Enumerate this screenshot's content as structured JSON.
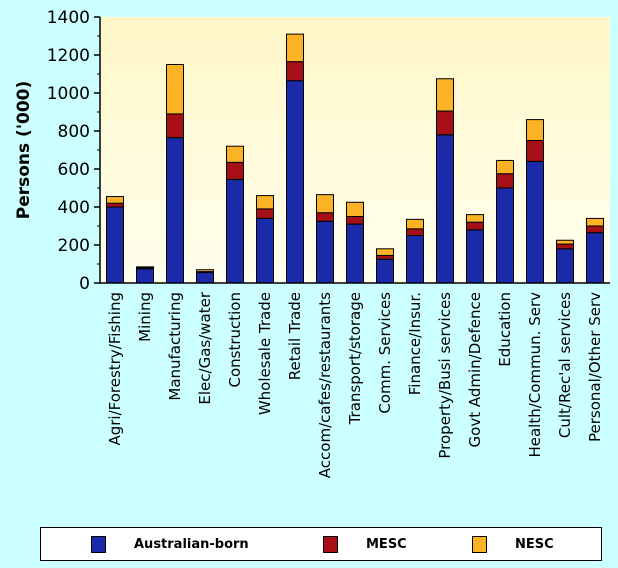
{
  "chart_data": {
    "type": "bar",
    "stacked": true,
    "title": "",
    "xlabel": "",
    "ylabel": "Persons ('000)",
    "ylim": [
      0,
      1400
    ],
    "yticks": [
      "0",
      "200",
      "400",
      "600",
      "800",
      "1000",
      "1200",
      "1400"
    ],
    "categories": [
      "Agri/Forestry/Fishing",
      "Mining",
      "Manufacturing",
      "Elec/Gas/water",
      "Construction",
      "Wholesale Trade",
      "Retail Trade",
      "Accom/cafes/restaurants",
      "Transport/storage",
      "Comm. Services",
      "Finance/Insur.",
      "Property/Busi services",
      "Govt Admin/Defence",
      "Education",
      "Health/Commun. Serv",
      "Cult/Rec'al services",
      "Personal/Other Serv"
    ],
    "series": [
      {
        "name": "Australian-born",
        "color": "#1a2aa8",
        "values": [
          400,
          75,
          765,
          55,
          545,
          340,
          1065,
          325,
          310,
          125,
          250,
          780,
          280,
          500,
          640,
          180,
          265
        ]
      },
      {
        "name": "MESC",
        "color": "#a50f15",
        "values": [
          20,
          5,
          125,
          5,
          90,
          50,
          100,
          45,
          40,
          20,
          35,
          125,
          40,
          75,
          110,
          25,
          35
        ]
      },
      {
        "name": "NESC",
        "color": "#fbb225",
        "values": [
          35,
          5,
          260,
          10,
          85,
          70,
          145,
          95,
          75,
          35,
          50,
          170,
          40,
          70,
          110,
          20,
          40
        ]
      }
    ],
    "legend_position": "bottom",
    "grid": false
  }
}
